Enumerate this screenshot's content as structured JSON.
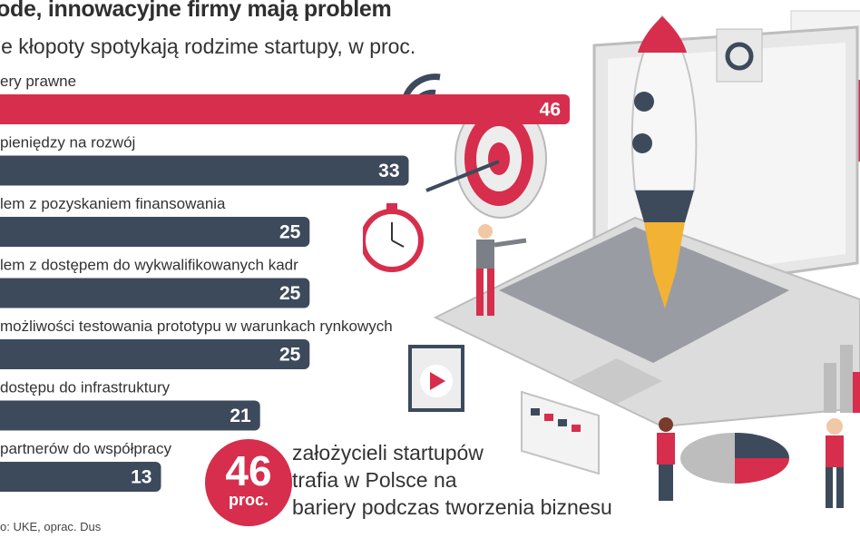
{
  "title": "ode, innowacyjne firmy mają problem",
  "subtitle": "ie kłopoty spotykają rodzime startupy, w proc.",
  "source": "o: UKE, oprac. Dus",
  "callout": {
    "number": "46",
    "unit": "proc.",
    "lines": [
      "założycieli startupów",
      "trafia w Polsce na",
      "bariery podczas tworzenia biznesu"
    ]
  },
  "colors": {
    "highlight": "#d62e4c",
    "bar": "#3d4a5c"
  },
  "chart_data": {
    "type": "bar",
    "orientation": "horizontal",
    "title": "ode, innowacyjne firmy mają problem",
    "subtitle": "ie kłopoty spotykają rodzime startupy, w proc.",
    "categories": [
      "ery prawne",
      "pieniędzy na rozwój",
      "lem z pozyskaniem finansowania",
      "lem z dostępem do wykwalifikowanych kadr",
      "możliwości testowania prototypu w warunkach rynkowych",
      "dostępu do infrastruktury",
      "partnerów do współpracy"
    ],
    "values": [
      46,
      33,
      25,
      25,
      25,
      21,
      13
    ],
    "highlight_index": 0,
    "xlim": [
      0,
      46
    ],
    "grid": false
  }
}
